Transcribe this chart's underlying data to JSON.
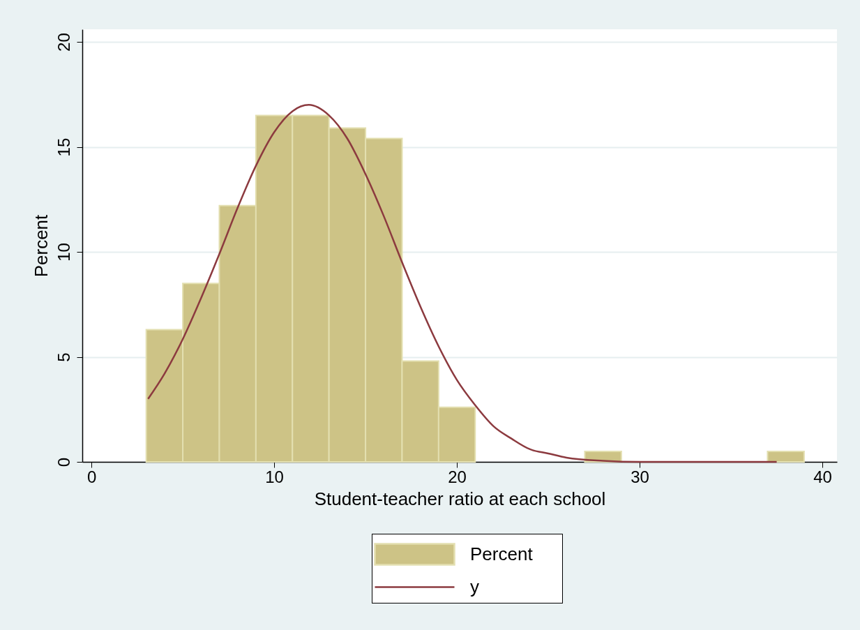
{
  "chart_data": {
    "type": "histogram",
    "xlabel": "Student-teacher ratio at each school",
    "ylabel": "Percent",
    "bins": [
      3,
      5,
      7,
      9,
      11,
      13,
      15,
      17,
      19,
      21,
      23,
      25,
      27,
      29,
      31,
      33,
      35,
      37,
      39
    ],
    "series": [
      {
        "name": "Percent",
        "color": "#cdc386",
        "values": [
          6.3,
          8.5,
          12.2,
          16.5,
          16.5,
          15.9,
          15.4,
          4.8,
          2.6,
          0,
          0,
          0,
          0.5,
          0,
          0,
          0,
          0,
          0.5
        ]
      },
      {
        "name": "y",
        "type": "line",
        "color": "#8c3a3f",
        "x": [
          3.1,
          4,
          5,
          6,
          7,
          8,
          9,
          10,
          11,
          11.9,
          13,
          14,
          15,
          16,
          17,
          18,
          19,
          20,
          21,
          22,
          23,
          24,
          25,
          26,
          28,
          30,
          37.5
        ],
        "values": [
          3.0,
          4.2,
          5.85,
          7.8,
          9.9,
          12.1,
          14.1,
          15.7,
          16.7,
          17.0,
          16.5,
          15.4,
          13.7,
          11.7,
          9.5,
          7.4,
          5.5,
          3.9,
          2.7,
          1.7,
          1.1,
          0.6,
          0.4,
          0.2,
          0.05,
          0,
          0
        ]
      }
    ],
    "xlim": [
      -0.5,
      40.8
    ],
    "xticks": [
      0,
      10,
      20,
      30,
      40
    ],
    "ylim": [
      0,
      20.6
    ],
    "yticks": [
      0,
      5,
      10,
      15,
      20
    ],
    "grid": "y",
    "legend": "bottom"
  }
}
